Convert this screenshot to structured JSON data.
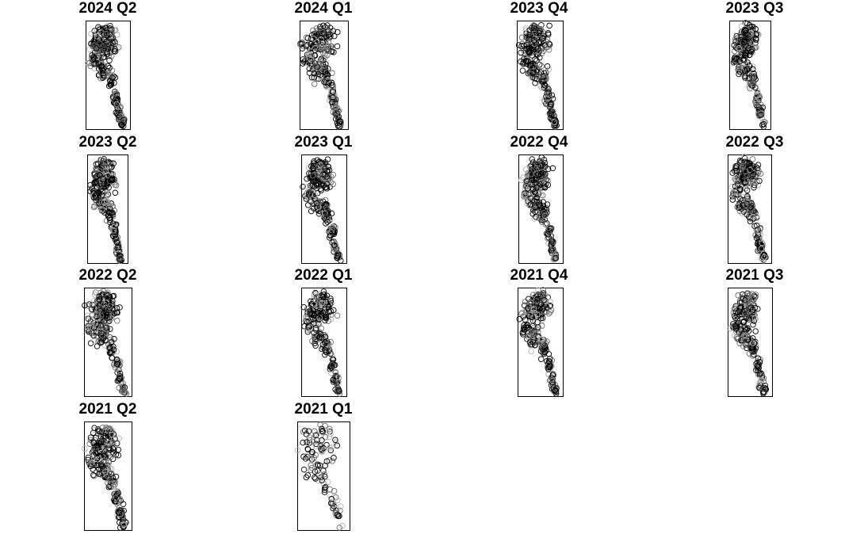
{
  "chart_data": {
    "type": "scatter",
    "layout": "small-multiples 4 columns",
    "marker": "open circle",
    "marker_color": "#000000",
    "point_color_values": [
      "#000000",
      "#6e6e6e",
      "#b3b3b3"
    ],
    "axes": "box only, no ticks or labels",
    "panels": [
      {
        "title": "2024 Q2",
        "n_points": 330,
        "spread": 1.0
      },
      {
        "title": "2024 Q1",
        "n_points": 320,
        "spread": 1.05
      },
      {
        "title": "2023 Q4",
        "n_points": 320,
        "spread": 1.0
      },
      {
        "title": "2023 Q3",
        "n_points": 300,
        "spread": 1.0
      },
      {
        "title": "2023 Q2",
        "n_points": 320,
        "spread": 1.0
      },
      {
        "title": "2023 Q1",
        "n_points": 300,
        "spread": 1.0
      },
      {
        "title": "2022 Q4",
        "n_points": 310,
        "spread": 1.0
      },
      {
        "title": "2022 Q3",
        "n_points": 300,
        "spread": 1.0
      },
      {
        "title": "2022 Q2",
        "n_points": 320,
        "spread": 1.05
      },
      {
        "title": "2022 Q1",
        "n_points": 290,
        "spread": 1.0
      },
      {
        "title": "2021 Q4",
        "n_points": 280,
        "spread": 1.0
      },
      {
        "title": "2021 Q3",
        "n_points": 280,
        "spread": 1.0
      },
      {
        "title": "2021 Q2",
        "n_points": 300,
        "spread": 1.05
      },
      {
        "title": "2021 Q1",
        "n_points": 120,
        "spread": 1.35
      }
    ]
  }
}
